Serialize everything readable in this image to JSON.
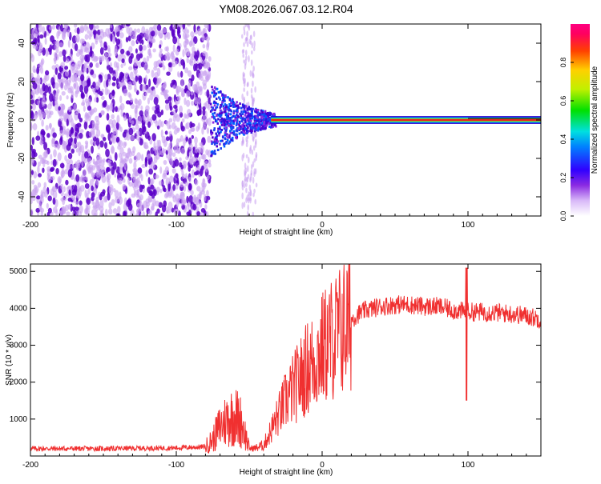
{
  "title": "YM08.2026.067.03.12.R04",
  "colors": {
    "snr_line": "#f03030",
    "spectral_ridge": "#e82020",
    "scatter_dark": "#5a00c8",
    "scatter_light": "#c8a0f0"
  },
  "chart_data": [
    {
      "type": "heatmap",
      "xlabel": "Height of straight line (km)",
      "ylabel": "Frequency (Hz)",
      "xlim": [
        -200,
        150
      ],
      "ylim": [
        -50,
        50
      ],
      "x_ticks": [
        -200,
        -100,
        0,
        100
      ],
      "x_tick_labels": [
        "-200",
        "-100",
        "0",
        "100"
      ],
      "y_ticks": [
        -40,
        -20,
        0,
        20,
        40
      ],
      "y_tick_labels": [
        "-40",
        "-20",
        "0",
        "20",
        "40"
      ],
      "colorbar": {
        "label": "Normalized spectral amplitude",
        "range": [
          0,
          1
        ],
        "ticks": [
          0,
          0.2,
          0.4,
          0.6,
          0.8
        ],
        "tick_labels": [
          "0.0",
          "0.2",
          "0.4",
          "0.6",
          "0.8"
        ],
        "colormap": "rainbow"
      },
      "features": {
        "broadband_noise_x": [
          -200,
          -77
        ],
        "isolated_noise_band_x": [
          -55,
          -45
        ],
        "signal_onset_x": -77,
        "signal_peak_frequency_hz": 0
      }
    },
    {
      "type": "line",
      "xlabel": "Height of straight line (km)",
      "ylabel": "SNR (10 * v/v)",
      "xlim": [
        -200,
        150
      ],
      "ylim": [
        0,
        5200
      ],
      "x_ticks": [
        -200,
        -100,
        0,
        100
      ],
      "x_tick_labels": [
        "-200",
        "-100",
        "0",
        "100"
      ],
      "y_ticks": [
        1000,
        2000,
        3000,
        4000,
        5000
      ],
      "y_tick_labels": [
        "1000",
        "2000",
        "3000",
        "4000",
        "5000"
      ],
      "series": [
        {
          "x": [
            -200,
            -150,
            -100,
            -80,
            -75,
            -70,
            -65,
            -60,
            -55,
            -50,
            -45,
            -40,
            -35,
            -30,
            -25,
            -20,
            -15,
            -10,
            -5,
            0,
            5,
            10,
            15,
            20,
            25,
            30,
            40,
            50,
            60,
            70,
            80,
            90,
            100,
            110,
            120,
            130,
            140,
            150
          ],
          "y": [
            200,
            200,
            220,
            250,
            450,
            800,
            1000,
            1100,
            900,
            200,
            220,
            300,
            700,
            1100,
            1500,
            1800,
            2100,
            2400,
            2600,
            2900,
            3100,
            3300,
            3500,
            3700,
            3850,
            3950,
            4050,
            4100,
            4100,
            4050,
            4050,
            3950,
            3900,
            3900,
            3880,
            3850,
            3800,
            3700
          ],
          "spike_x": 99,
          "spike_max": 5100,
          "spike_min": 1500
        }
      ]
    }
  ]
}
